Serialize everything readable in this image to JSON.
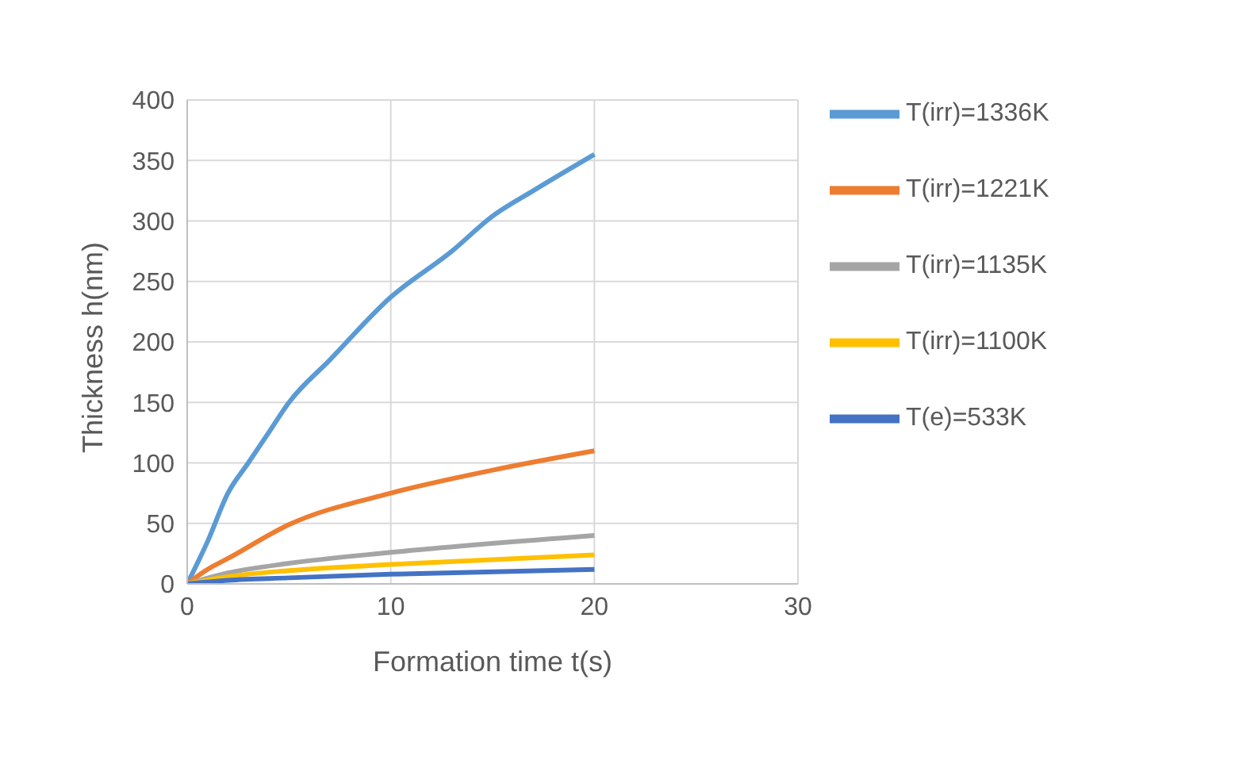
{
  "chart_data": {
    "type": "line",
    "xlabel": "Formation time t(s)",
    "ylabel": "Thickness h(nm)",
    "xlim": [
      0,
      30
    ],
    "xticks": [
      0,
      10,
      20,
      30
    ],
    "ylim": [
      0,
      400
    ],
    "yticks": [
      0,
      50,
      100,
      150,
      200,
      250,
      300,
      350,
      400
    ],
    "grid": true,
    "legend": "right",
    "marker": "none",
    "line_style": "solid",
    "series": [
      {
        "name": "T(irr)=1336K",
        "color": "#5b9bd5",
        "x": [
          0,
          1,
          2,
          3,
          4,
          5,
          7,
          10,
          13,
          15,
          17,
          20
        ],
        "values": [
          0,
          35,
          75,
          100,
          125,
          150,
          185,
          237,
          275,
          304,
          325,
          355
        ]
      },
      {
        "name": "T(irr)=1221K",
        "color": "#ed7d31",
        "x": [
          0,
          1,
          2,
          5,
          10,
          15,
          20
        ],
        "values": [
          0,
          12,
          21,
          49,
          75,
          94,
          110
        ]
      },
      {
        "name": "T(irr)=1135K",
        "color": "#a5a5a5",
        "x": [
          0,
          2,
          5,
          10,
          20
        ],
        "values": [
          0,
          9,
          17,
          26,
          40
        ]
      },
      {
        "name": "T(irr)=1100K",
        "color": "#ffc000",
        "x": [
          0,
          2,
          5,
          10,
          20
        ],
        "values": [
          0,
          6,
          11,
          16,
          24
        ]
      },
      {
        "name": "T(e)=533K",
        "color": "#4472c4",
        "x": [
          0,
          2,
          5,
          10,
          20
        ],
        "values": [
          0,
          3,
          5,
          8,
          12
        ]
      }
    ]
  }
}
